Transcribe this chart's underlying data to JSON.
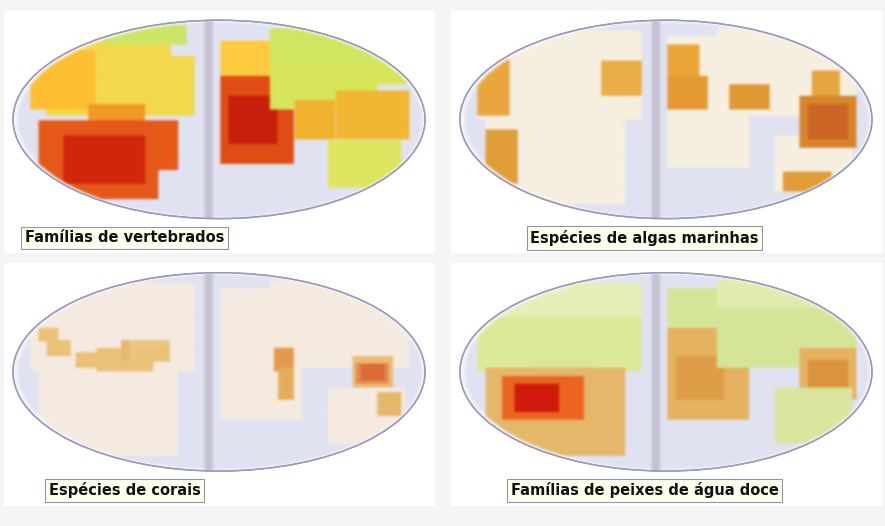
{
  "background_color": "#f5f5f5",
  "labels": [
    "Famílias de vertebrados",
    "Espécies de algas marinhas",
    "Espécies de corais",
    "Famílias de peixes de água doce"
  ],
  "label_box_facecolor": "#ffffee",
  "label_box_edgecolor": "#8899aa",
  "label_fontsize": 10.5,
  "label_fontweight": "bold",
  "label_color": "#111111",
  "page_bg": "#f8f6f0",
  "page_bg2": "#f0eee8",
  "oval_bg": "#dde0ef",
  "oval_edge": "#9999bb",
  "spine_color": "#c0bec8",
  "spine_shadow": "#e8e6f0",
  "figsize": [
    8.85,
    5.26
  ],
  "dpi": 100
}
